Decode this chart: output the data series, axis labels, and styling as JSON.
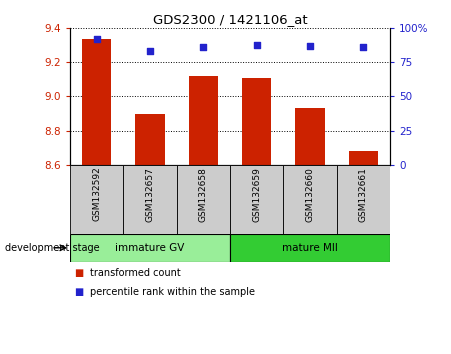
{
  "title": "GDS2300 / 1421106_at",
  "samples": [
    "GSM132592",
    "GSM132657",
    "GSM132658",
    "GSM132659",
    "GSM132660",
    "GSM132661"
  ],
  "transformed_counts": [
    9.34,
    8.9,
    9.12,
    9.11,
    8.93,
    8.68
  ],
  "percentile_ranks": [
    92,
    83,
    86,
    88,
    87,
    86
  ],
  "ylim_left": [
    8.6,
    9.4
  ],
  "ylim_right": [
    0,
    100
  ],
  "yticks_left": [
    8.6,
    8.8,
    9.0,
    9.2,
    9.4
  ],
  "yticks_right": [
    0,
    25,
    50,
    75,
    100
  ],
  "ytick_labels_right": [
    "0",
    "25",
    "50",
    "75",
    "100%"
  ],
  "bar_color": "#cc2200",
  "dot_color": "#2222cc",
  "bar_bottom": 8.6,
  "groups": [
    {
      "label": "immature GV",
      "indices": [
        0,
        1,
        2
      ],
      "color": "#99ee99"
    },
    {
      "label": "mature MII",
      "indices": [
        3,
        4,
        5
      ],
      "color": "#33cc33"
    }
  ],
  "dev_stage_label": "development stage",
  "legend_items": [
    {
      "label": "transformed count",
      "color": "#cc2200"
    },
    {
      "label": "percentile rank within the sample",
      "color": "#2222cc"
    }
  ],
  "axis_label_color_left": "#cc2200",
  "axis_label_color_right": "#2222cc",
  "bg_sample_row": "#cccccc",
  "bar_width": 0.55
}
